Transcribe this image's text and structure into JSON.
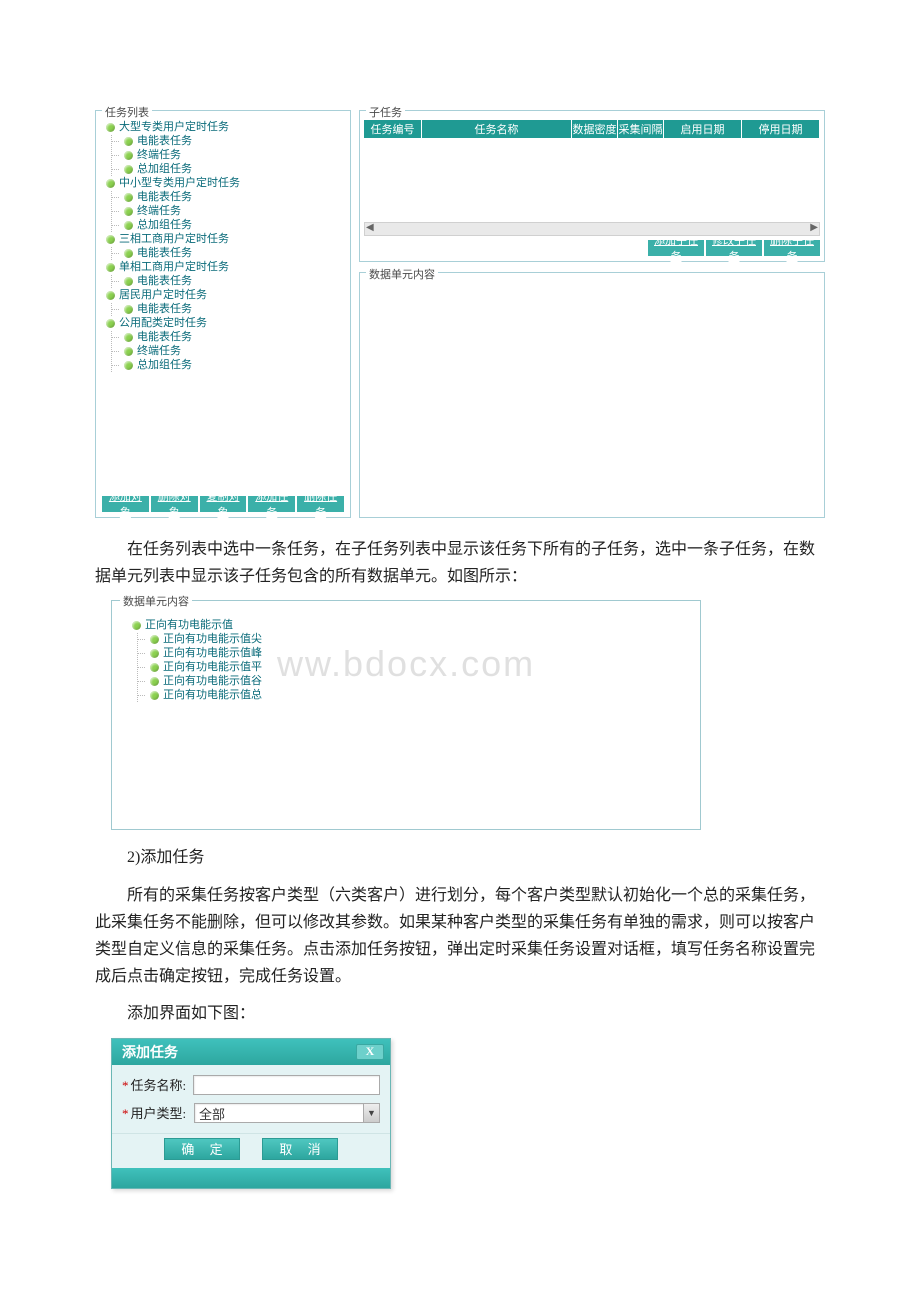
{
  "colors": {
    "teal": "#2da69f",
    "tealLight": "#3fc1bc",
    "tealBtn": "#3bb0a9",
    "border": "#a8cfd7",
    "nodeBullet": "#8bd14f",
    "nodeText": "#0a6b7a",
    "watermark": "#e0e0e0"
  },
  "leftPanel": {
    "title": "任务列表",
    "tree": [
      {
        "label": "大型专类用户定时任务",
        "indent": 0
      },
      {
        "label": "电能表任务",
        "indent": 1
      },
      {
        "label": "终端任务",
        "indent": 1
      },
      {
        "label": "总加组任务",
        "indent": 1
      },
      {
        "label": "中小型专类用户定时任务",
        "indent": 0
      },
      {
        "label": "电能表任务",
        "indent": 1
      },
      {
        "label": "终端任务",
        "indent": 1
      },
      {
        "label": "总加组任务",
        "indent": 1
      },
      {
        "label": "三相工商用户定时任务",
        "indent": 0
      },
      {
        "label": "电能表任务",
        "indent": 1
      },
      {
        "label": "单相工商用户定时任务",
        "indent": 0
      },
      {
        "label": "电能表任务",
        "indent": 1
      },
      {
        "label": "居民用户定时任务",
        "indent": 0
      },
      {
        "label": "电能表任务",
        "indent": 1
      },
      {
        "label": "公用配类定时任务",
        "indent": 0
      },
      {
        "label": "电能表任务",
        "indent": 1
      },
      {
        "label": "终端任务",
        "indent": 1
      },
      {
        "label": "总加组任务",
        "indent": 1
      }
    ],
    "buttons": [
      "添加对象",
      "删除对象",
      "复制对象",
      "添加任务",
      "删除任务"
    ]
  },
  "subTaskPanel": {
    "title": "子任务",
    "columns": {
      "no": "任务编号",
      "name": "任务名称",
      "density": "数据密度",
      "interval": "采集间隔",
      "start": "启用日期",
      "stop": "停用日期"
    },
    "buttons": [
      "添加子任务",
      "修改子任务",
      "删除子任务"
    ]
  },
  "dataUnitPanel": {
    "title": "数据单元内容"
  },
  "paragraph1": "在任务列表中选中一条任务，在子任务列表中显示该任务下所有的子任务，选中一条子任务，在数据单元列表中显示该子任务包含的所有数据单元。如图所示：",
  "dataUnitPanel2": {
    "title": "数据单元内容",
    "watermark": "ww.bdocx.com",
    "tree": [
      {
        "label": "正向有功电能示值",
        "indent": 0
      },
      {
        "label": "正向有功电能示值尖",
        "indent": 1
      },
      {
        "label": "正向有功电能示值峰",
        "indent": 1
      },
      {
        "label": "正向有功电能示值平",
        "indent": 1
      },
      {
        "label": "正向有功电能示值谷",
        "indent": 1
      },
      {
        "label": "正向有功电能示值总",
        "indent": 1
      }
    ]
  },
  "heading2": "2)添加任务",
  "paragraph2": "所有的采集任务按客户类型（六类客户）进行划分，每个客户类型默认初始化一个总的采集任务，此采集任务不能删除，但可以修改其参数。如果某种客户类型的采集任务有单独的需求，则可以按客户类型自定义信息的采集任务。点击添加任务按钮，弹出定时采集任务设置对话框，填写任务名称设置完成后点击确定按钮，完成任务设置。",
  "paragraph3": "添加界面如下图：",
  "dialog": {
    "title": "添加任务",
    "close": "X",
    "taskNameLabel": "任务名称:",
    "taskNameValue": "",
    "userTypeLabel": "用户类型:",
    "userTypeValue": "全部",
    "ok": "确 定",
    "cancel": "取 消"
  }
}
